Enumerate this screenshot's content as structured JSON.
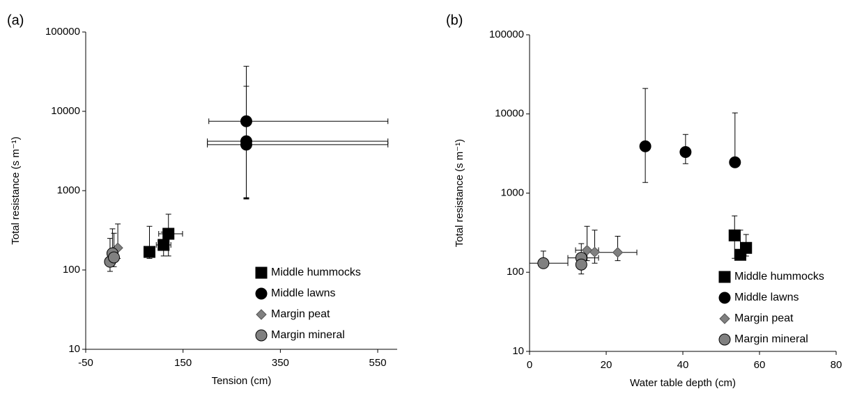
{
  "chart_data": [
    {
      "type": "scatter",
      "panel_label": "(a)",
      "x_label": "Tension (cm)",
      "y_label": "Total resistance (s m⁻¹)",
      "xlim": [
        -50,
        590
      ],
      "xticks": [
        -50,
        150,
        350,
        550
      ],
      "ylim": [
        10,
        100000
      ],
      "yticks": [
        10,
        100,
        1000,
        10000,
        100000
      ],
      "log_y": true,
      "legend": "lower right",
      "series": [
        {
          "name": "Middle hummocks",
          "marker": "square",
          "color": "#000000",
          "x": [
            81,
            110,
            120
          ],
          "values": [
            169,
            207,
            286
          ],
          "x_low": [
            null,
            95,
            100
          ],
          "x_high": [
            null,
            125,
            149
          ],
          "y_low": [
            140,
            150,
            150
          ],
          "y_high": [
            355,
            300,
            505
          ]
        },
        {
          "name": "Middle lawns",
          "marker": "circle",
          "color": "#000000",
          "x": [
            280,
            280,
            280
          ],
          "values": [
            7500,
            4200,
            3800
          ],
          "x_low": [
            203,
            200,
            200
          ],
          "x_high": [
            571,
            571,
            571
          ],
          "y_low": [
            785,
            800,
            815
          ],
          "y_high": [
            37000,
            20700,
            null
          ]
        },
        {
          "name": "Margin peat",
          "marker": "diamond",
          "color": "#808080",
          "x": [
            16
          ],
          "values": [
            190
          ],
          "x_low": [
            null
          ],
          "x_high": [
            null
          ],
          "y_low": [
            140
          ],
          "y_high": [
            380
          ]
        },
        {
          "name": "Margin mineral",
          "marker": "circle",
          "color": "#808080",
          "x": [
            0,
            5,
            8
          ],
          "values": [
            127,
            162,
            144
          ],
          "x_low": [
            null,
            null,
            null
          ],
          "x_high": [
            null,
            null,
            null
          ],
          "y_low": [
            96,
            120,
            110
          ],
          "y_high": [
            250,
            330,
            290
          ]
        }
      ]
    },
    {
      "type": "scatter",
      "panel_label": "(b)",
      "x_label": "Water table depth (cm)",
      "y_label": "Total resistance (s m⁻¹)",
      "xlim": [
        0,
        80
      ],
      "xticks": [
        0,
        20,
        40,
        60,
        80
      ],
      "ylim": [
        10,
        100000
      ],
      "yticks": [
        10,
        100,
        1000,
        10000,
        100000
      ],
      "log_y": true,
      "legend": "lower right",
      "series": [
        {
          "name": "Middle hummocks",
          "marker": "square",
          "color": "#000000",
          "x": [
            53.5,
            55,
            56.5
          ],
          "values": [
            292,
            166,
            203
          ],
          "x_low": [
            null,
            null,
            null
          ],
          "x_high": [
            null,
            null,
            null
          ],
          "y_low": [
            150,
            150,
            160
          ],
          "y_high": [
            515,
            340,
            300
          ]
        },
        {
          "name": "Middle lawns",
          "marker": "circle",
          "color": "#000000",
          "x": [
            30.2,
            40.7,
            53.6
          ],
          "values": [
            3900,
            3300,
            2450
          ],
          "x_low": [
            null,
            null,
            null
          ],
          "x_high": [
            null,
            null,
            null
          ],
          "y_low": [
            1360,
            2350,
            null
          ],
          "y_high": [
            21000,
            5500,
            10300
          ]
        },
        {
          "name": "Margin peat",
          "marker": "diamond",
          "color": "#808080",
          "x": [
            15,
            17,
            23
          ],
          "values": [
            190,
            180,
            178
          ],
          "x_low": [
            12,
            null,
            17
          ],
          "x_high": [
            18,
            null,
            28
          ],
          "y_low": [
            140,
            130,
            140
          ],
          "y_high": [
            380,
            340,
            285
          ]
        },
        {
          "name": "Margin mineral",
          "marker": "circle",
          "color": "#808080",
          "x": [
            3.6,
            13.5,
            13.5
          ],
          "values": [
            130,
            152,
            125
          ],
          "x_low": [
            0,
            10,
            null
          ],
          "x_high": [
            10,
            18,
            null
          ],
          "y_low": [
            115,
            95,
            null
          ],
          "y_high": [
            185,
            230,
            null
          ]
        }
      ]
    }
  ]
}
